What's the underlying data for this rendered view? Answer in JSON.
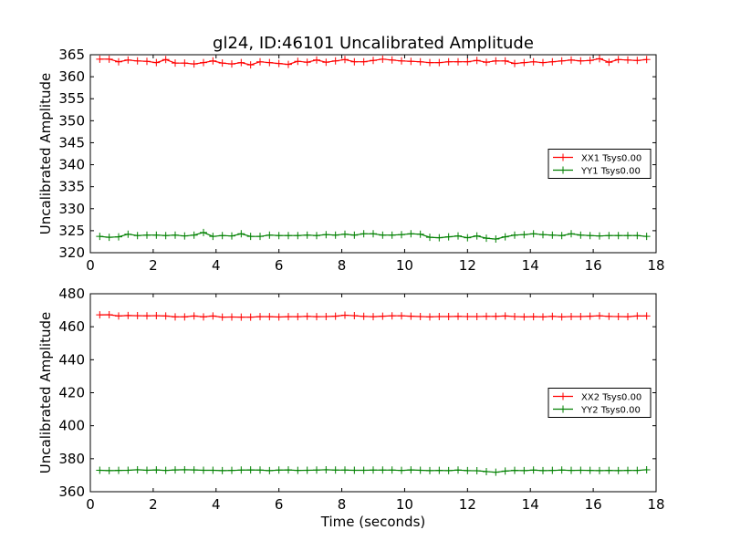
{
  "figure": {
    "title": "gl24, ID:46101 Uncalibrated Amplitude",
    "xlabel": "Time (seconds)"
  },
  "chart_data": [
    {
      "type": "line",
      "ylabel": "Uncalibrated Amplitude",
      "xlim": [
        0,
        18
      ],
      "ylim": [
        320,
        365
      ],
      "xticks": [
        0,
        2,
        4,
        6,
        8,
        10,
        12,
        14,
        16,
        18
      ],
      "yticks": [
        320,
        325,
        330,
        335,
        340,
        345,
        350,
        355,
        360,
        365
      ],
      "legend_position": "center-right",
      "grid": false,
      "x": [
        0.3,
        0.6,
        0.9,
        1.2,
        1.5,
        1.8,
        2.1,
        2.4,
        2.7,
        3.0,
        3.3,
        3.6,
        3.9,
        4.2,
        4.5,
        4.8,
        5.1,
        5.4,
        5.7,
        6.0,
        6.3,
        6.6,
        6.9,
        7.2,
        7.5,
        7.8,
        8.1,
        8.4,
        8.7,
        9.0,
        9.3,
        9.6,
        9.9,
        10.2,
        10.5,
        10.8,
        11.1,
        11.4,
        11.7,
        12.0,
        12.3,
        12.6,
        12.9,
        13.2,
        13.5,
        13.8,
        14.1,
        14.4,
        14.7,
        15.0,
        15.3,
        15.6,
        15.9,
        16.2,
        16.5,
        16.8,
        17.1,
        17.4,
        17.7
      ],
      "series": [
        {
          "name": "XX1 Tsys0.00",
          "color": "#ff0000",
          "values": [
            364.0,
            364.0,
            363.4,
            363.8,
            363.6,
            363.5,
            363.2,
            363.9,
            363.1,
            363.1,
            362.9,
            363.2,
            363.6,
            363.1,
            362.9,
            363.2,
            362.7,
            363.4,
            363.2,
            363.0,
            362.8,
            363.5,
            363.3,
            363.8,
            363.3,
            363.6,
            363.9,
            363.4,
            363.4,
            363.7,
            364.0,
            363.8,
            363.6,
            363.5,
            363.4,
            363.2,
            363.2,
            363.4,
            363.4,
            363.4,
            363.7,
            363.3,
            363.6,
            363.6,
            363.0,
            363.2,
            363.4,
            363.2,
            363.4,
            363.6,
            363.8,
            363.6,
            363.7,
            364.1,
            363.3,
            363.9,
            363.8,
            363.7,
            363.9
          ]
        },
        {
          "name": "YY1 Tsys0.00",
          "color": "#008000",
          "values": [
            323.7,
            323.5,
            323.6,
            324.2,
            323.9,
            324.0,
            324.0,
            323.9,
            324.0,
            323.8,
            324.0,
            324.6,
            323.7,
            323.9,
            323.8,
            324.3,
            323.7,
            323.7,
            324.0,
            323.9,
            323.9,
            323.9,
            324.0,
            323.9,
            324.1,
            324.0,
            324.2,
            324.0,
            324.3,
            324.3,
            324.0,
            324.0,
            324.1,
            324.3,
            324.2,
            323.5,
            323.4,
            323.6,
            323.8,
            323.4,
            323.8,
            323.3,
            323.1,
            323.6,
            324.0,
            324.1,
            324.3,
            324.1,
            324.0,
            323.9,
            324.3,
            324.0,
            323.9,
            323.8,
            323.9,
            323.9,
            323.9,
            323.9,
            323.7
          ]
        }
      ]
    },
    {
      "type": "line",
      "ylabel": "Uncalibrated Amplitude",
      "xlim": [
        0,
        18
      ],
      "ylim": [
        360,
        480
      ],
      "xticks": [
        0,
        2,
        4,
        6,
        8,
        10,
        12,
        14,
        16,
        18
      ],
      "yticks": [
        360,
        380,
        400,
        420,
        440,
        460,
        480
      ],
      "legend_position": "center-right",
      "grid": false,
      "x": [
        0.3,
        0.6,
        0.9,
        1.2,
        1.5,
        1.8,
        2.1,
        2.4,
        2.7,
        3.0,
        3.3,
        3.6,
        3.9,
        4.2,
        4.5,
        4.8,
        5.1,
        5.4,
        5.7,
        6.0,
        6.3,
        6.6,
        6.9,
        7.2,
        7.5,
        7.8,
        8.1,
        8.4,
        8.7,
        9.0,
        9.3,
        9.6,
        9.9,
        10.2,
        10.5,
        10.8,
        11.1,
        11.4,
        11.7,
        12.0,
        12.3,
        12.6,
        12.9,
        13.2,
        13.5,
        13.8,
        14.1,
        14.4,
        14.7,
        15.0,
        15.3,
        15.6,
        15.9,
        16.2,
        16.5,
        16.8,
        17.1,
        17.4,
        17.7
      ],
      "series": [
        {
          "name": "XX2 Tsys0.00",
          "color": "#ff0000",
          "values": [
            467.2,
            467.3,
            466.5,
            466.8,
            466.7,
            466.6,
            466.7,
            466.5,
            466.0,
            466.0,
            466.5,
            466.0,
            466.5,
            465.8,
            465.9,
            465.8,
            465.8,
            466.1,
            466.1,
            465.9,
            466.1,
            466.1,
            466.3,
            466.1,
            466.2,
            466.4,
            467.0,
            466.7,
            466.3,
            466.1,
            466.4,
            466.6,
            466.6,
            466.4,
            466.2,
            466.0,
            466.2,
            466.2,
            466.3,
            466.2,
            466.2,
            466.3,
            466.3,
            466.5,
            466.2,
            466.0,
            466.1,
            466.0,
            466.3,
            466.0,
            466.2,
            466.2,
            466.4,
            466.6,
            466.3,
            466.2,
            466.1,
            466.5,
            466.5
          ]
        },
        {
          "name": "YY2 Tsys0.00",
          "color": "#008000",
          "values": [
            373.0,
            372.8,
            372.9,
            373.0,
            373.3,
            373.0,
            373.2,
            372.9,
            373.2,
            373.3,
            373.2,
            373.0,
            373.0,
            372.8,
            372.9,
            373.1,
            373.2,
            373.1,
            372.8,
            373.1,
            373.2,
            372.9,
            373.0,
            373.1,
            373.3,
            373.1,
            373.1,
            373.0,
            373.0,
            373.1,
            373.1,
            373.1,
            372.9,
            373.2,
            373.0,
            372.8,
            372.9,
            372.8,
            373.1,
            372.8,
            372.7,
            372.2,
            371.8,
            372.5,
            372.9,
            372.8,
            373.1,
            372.8,
            372.9,
            373.1,
            372.9,
            373.0,
            372.9,
            372.8,
            372.9,
            372.8,
            372.9,
            372.9,
            373.3
          ]
        }
      ]
    }
  ]
}
